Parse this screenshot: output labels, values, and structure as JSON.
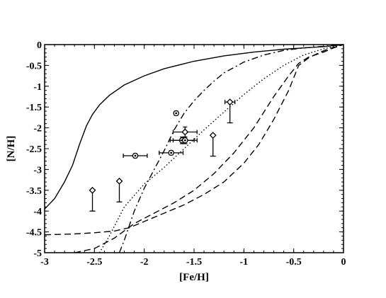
{
  "chart_data": {
    "type": "line",
    "xlabel": "[Fe/H]",
    "ylabel": "[N/H]",
    "xlim": [
      -3,
      0
    ],
    "ylim": [
      -5,
      0
    ],
    "x_ticks": [
      -3,
      -2.5,
      -2,
      -1.5,
      -1,
      -0.5,
      0
    ],
    "x_tick_labels": [
      "-3",
      "-2.5",
      "-2",
      "-1.5",
      "-1",
      "-0.5",
      "0"
    ],
    "y_ticks": [
      0,
      -0.5,
      -1,
      -1.5,
      -2,
      -2.5,
      -3,
      -3.5,
      -4,
      -4.5,
      -5
    ],
    "y_tick_labels": [
      "0",
      "-0.5",
      "-1",
      "-1.5",
      "-2",
      "-2.5",
      "-3",
      "-3.5",
      "-4",
      "-4.5",
      "-5"
    ],
    "grid": false,
    "series": [
      {
        "style": "solid",
        "x": [
          -3.0,
          -2.9,
          -2.8,
          -2.72,
          -2.65,
          -2.58,
          -2.52,
          -2.45,
          -2.35,
          -2.2,
          -2.0,
          -1.8,
          -1.5,
          -1.2,
          -0.9,
          -0.6,
          -0.4,
          -0.2,
          0.0
        ],
        "y": [
          -3.95,
          -3.7,
          -3.3,
          -2.9,
          -2.4,
          -1.95,
          -1.68,
          -1.45,
          -1.22,
          -0.97,
          -0.75,
          -0.58,
          -0.4,
          -0.27,
          -0.18,
          -0.11,
          -0.08,
          -0.05,
          0.0
        ]
      },
      {
        "style": "dashdot",
        "x": [
          -2.25,
          -2.2,
          -2.1,
          -2.0,
          -1.9,
          -1.8,
          -1.7,
          -1.6,
          -1.5,
          -1.4,
          -1.3,
          -1.2,
          -1.0,
          -0.8,
          -0.6,
          -0.4,
          -0.2,
          0.0
        ],
        "y": [
          -5.0,
          -4.7,
          -4.0,
          -3.45,
          -3.0,
          -2.55,
          -2.05,
          -1.65,
          -1.35,
          -1.1,
          -0.88,
          -0.68,
          -0.42,
          -0.25,
          -0.14,
          -0.08,
          -0.04,
          0.0
        ]
      },
      {
        "style": "dotted",
        "x": [
          -2.45,
          -2.35,
          -2.2,
          -2.0,
          -1.8,
          -1.6,
          -1.4,
          -1.2,
          -1.0,
          -0.8,
          -0.6,
          -0.4,
          -0.2,
          0.0
        ],
        "y": [
          -5.0,
          -4.6,
          -3.9,
          -3.35,
          -2.95,
          -2.5,
          -2.05,
          -1.62,
          -1.2,
          -0.82,
          -0.5,
          -0.25,
          -0.1,
          0.0
        ]
      },
      {
        "style": "dashed",
        "x": [
          -2.7,
          -2.5,
          -2.3,
          -2.1,
          -1.9,
          -1.7,
          -1.5,
          -1.3,
          -1.1,
          -0.9,
          -0.7,
          -0.55,
          -0.45,
          -0.35,
          -0.2,
          -0.1,
          0.0
        ],
        "y": [
          -5.0,
          -4.9,
          -4.65,
          -4.3,
          -4.05,
          -3.8,
          -3.5,
          -3.1,
          -2.6,
          -2.0,
          -1.25,
          -0.75,
          -0.45,
          -0.3,
          -0.18,
          -0.08,
          0.0
        ]
      },
      {
        "style": "dashed",
        "x": [
          -3.0,
          -2.7,
          -2.5,
          -2.3,
          -2.15,
          -2.0,
          -1.8,
          -1.6,
          -1.4,
          -1.2,
          -1.0,
          -0.85,
          -0.7,
          -0.55,
          -0.45,
          -0.35,
          -0.25,
          -0.15,
          0.0
        ],
        "y": [
          -4.57,
          -4.55,
          -4.52,
          -4.48,
          -4.4,
          -4.25,
          -4.05,
          -3.85,
          -3.6,
          -3.3,
          -2.85,
          -2.4,
          -1.8,
          -1.1,
          -0.5,
          -0.32,
          -0.2,
          -0.1,
          0.0
        ]
      }
    ],
    "points": [
      {
        "marker": "diamond",
        "x": -2.52,
        "y": -3.5,
        "yerr_low": 0.5
      },
      {
        "marker": "diamond",
        "x": -2.25,
        "y": -3.28,
        "yerr_low": 0.5
      },
      {
        "marker": "circle",
        "x": -2.09,
        "y": -2.67,
        "xerr": 0.12,
        "yerr": 0.05
      },
      {
        "marker": "circle",
        "x": -1.73,
        "y": -2.6,
        "xerr": 0.12,
        "yerr": 0.05
      },
      {
        "marker": "circle",
        "x": -1.68,
        "y": -1.65,
        "yerr": 0.05
      },
      {
        "marker": "diamond",
        "x": -1.59,
        "y": -2.1,
        "xerr": 0.12,
        "yerr": 0.12
      },
      {
        "marker": "circle",
        "x": -1.62,
        "y": -2.3,
        "xerr": 0.12,
        "yerr": 0.08
      },
      {
        "marker": "circle",
        "x": -1.59,
        "y": -2.3,
        "xerr": 0.12,
        "yerr": 0.08
      },
      {
        "marker": "diamond",
        "x": -1.31,
        "y": -2.18,
        "yerr_low": 0.5
      },
      {
        "marker": "diamond",
        "x": -1.14,
        "y": -1.38,
        "xerr": 0.05,
        "yerr_low": 0.5
      }
    ]
  }
}
